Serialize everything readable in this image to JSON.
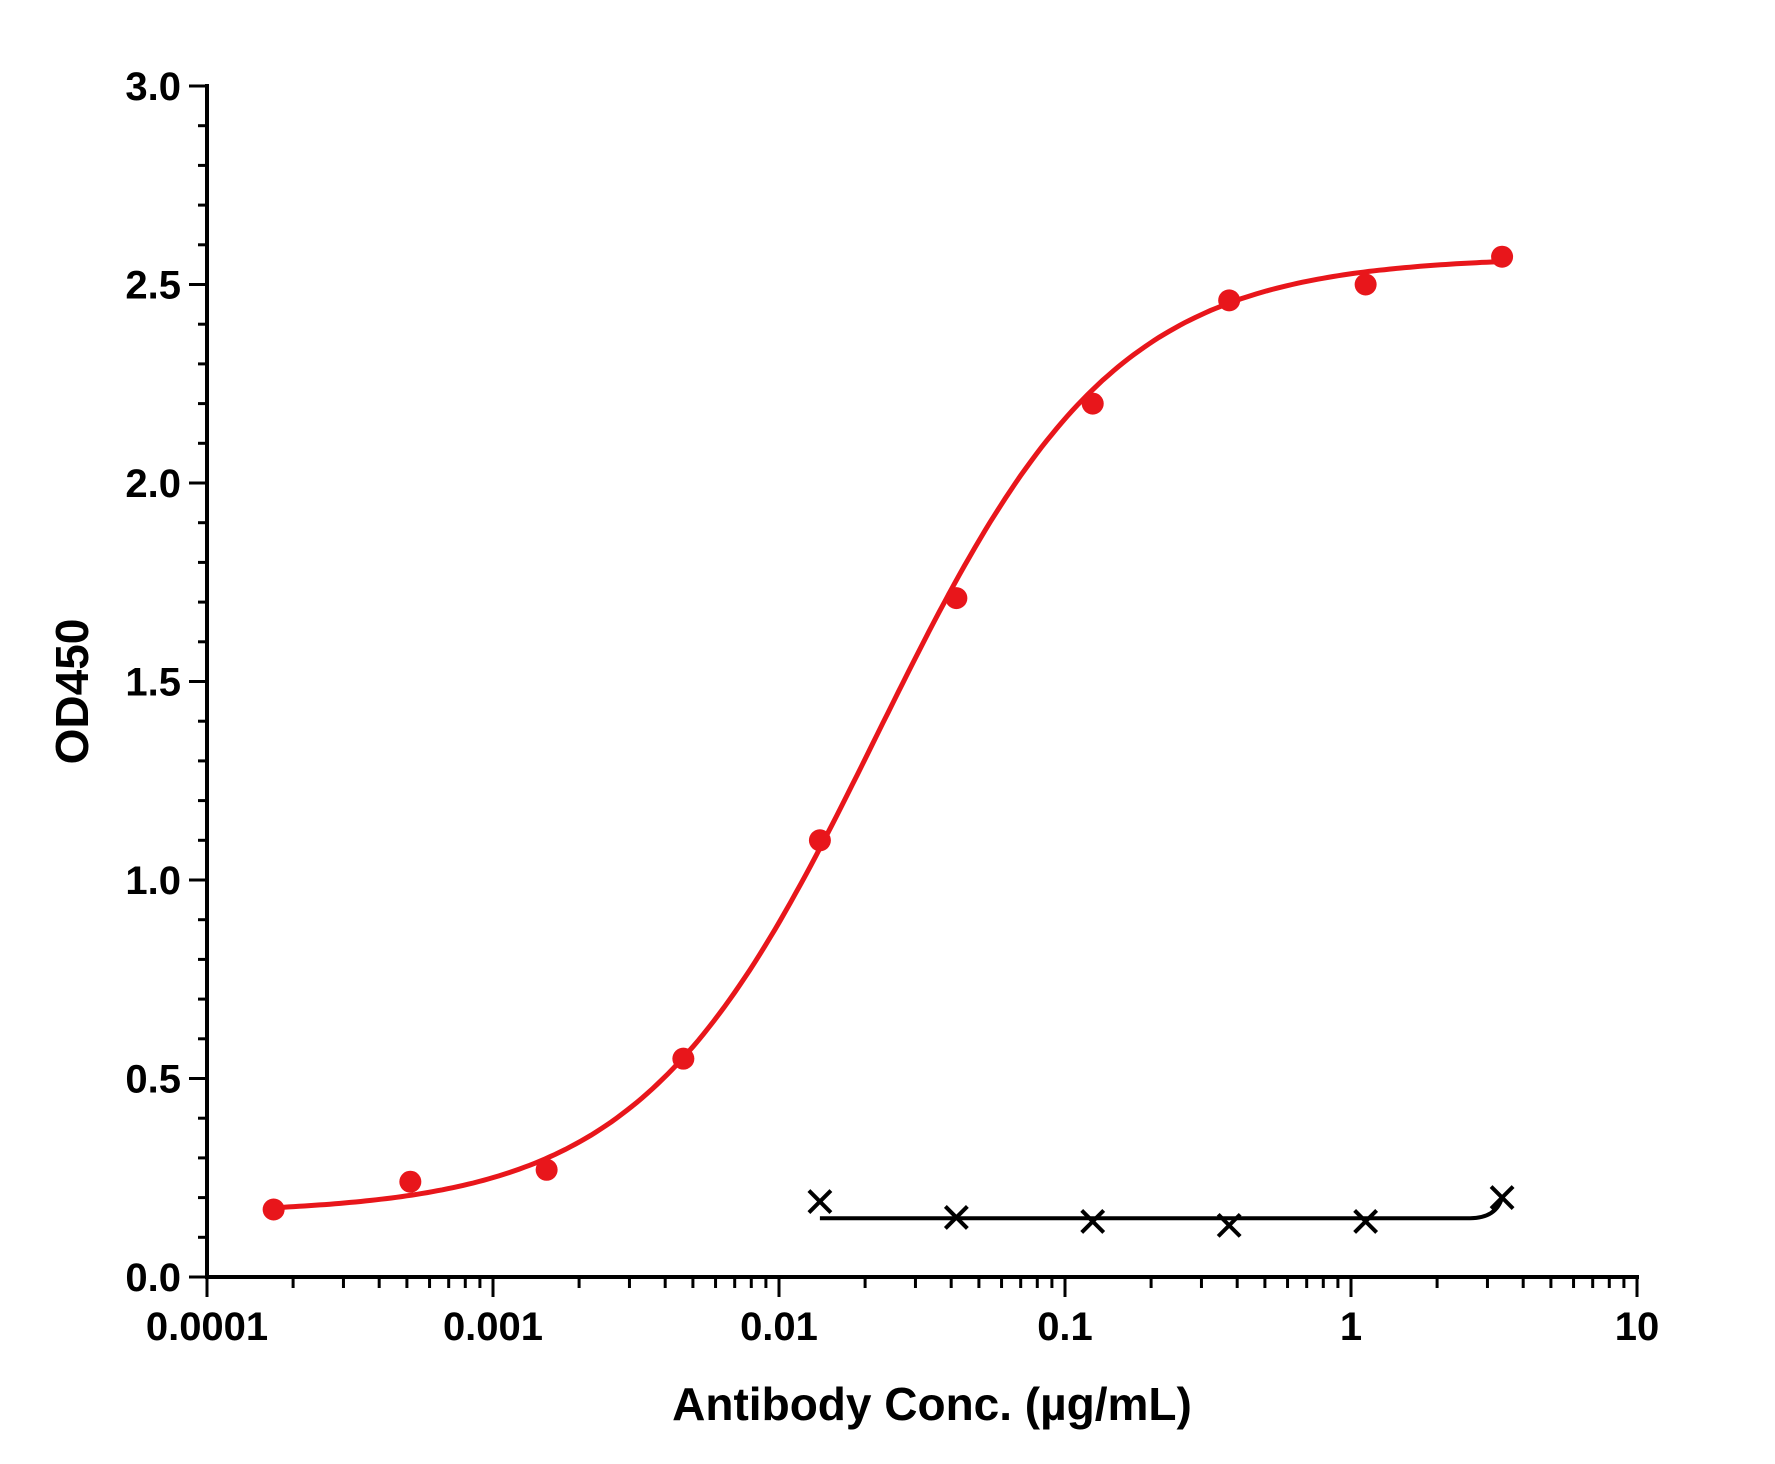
{
  "chart_data": {
    "type": "scatter",
    "xlabel": "Antibody Conc. (µg/mL)",
    "ylabel": "OD450",
    "x_scale": "log",
    "xlim": [
      0.0001,
      10
    ],
    "ylim": [
      0,
      3.0
    ],
    "x_ticks": [
      {
        "value": 0.0001,
        "label": "0.0001"
      },
      {
        "value": 0.001,
        "label": "0.001"
      },
      {
        "value": 0.01,
        "label": "0.01"
      },
      {
        "value": 0.1,
        "label": "0.1"
      },
      {
        "value": 1,
        "label": "1"
      },
      {
        "value": 10,
        "label": "10"
      }
    ],
    "y_ticks": [
      {
        "value": 0,
        "label": "0.0"
      },
      {
        "value": 0.5,
        "label": "0.5"
      },
      {
        "value": 1.0,
        "label": "1.0"
      },
      {
        "value": 1.5,
        "label": "1.5"
      },
      {
        "value": 2.0,
        "label": "2.0"
      },
      {
        "value": 2.5,
        "label": "2.5"
      },
      {
        "value": 3.0,
        "label": "3.0"
      }
    ],
    "grid": false,
    "series": [
      {
        "color": "#e8161b",
        "marker": "circle",
        "fit": "4PL",
        "x": [
          0.000171,
          0.000514,
          0.00154,
          0.00463,
          0.0139,
          0.0417,
          0.125,
          0.375,
          1.125,
          3.375
        ],
        "y": [
          0.17,
          0.24,
          0.27,
          0.55,
          1.1,
          1.71,
          2.2,
          2.46,
          2.5,
          2.57
        ]
      },
      {
        "color": "#000000",
        "marker": "x",
        "fit": "line",
        "x": [
          0.0139,
          0.0417,
          0.125,
          0.375,
          1.125,
          3.375
        ],
        "y": [
          0.19,
          0.15,
          0.14,
          0.13,
          0.14,
          0.2
        ]
      }
    ]
  }
}
